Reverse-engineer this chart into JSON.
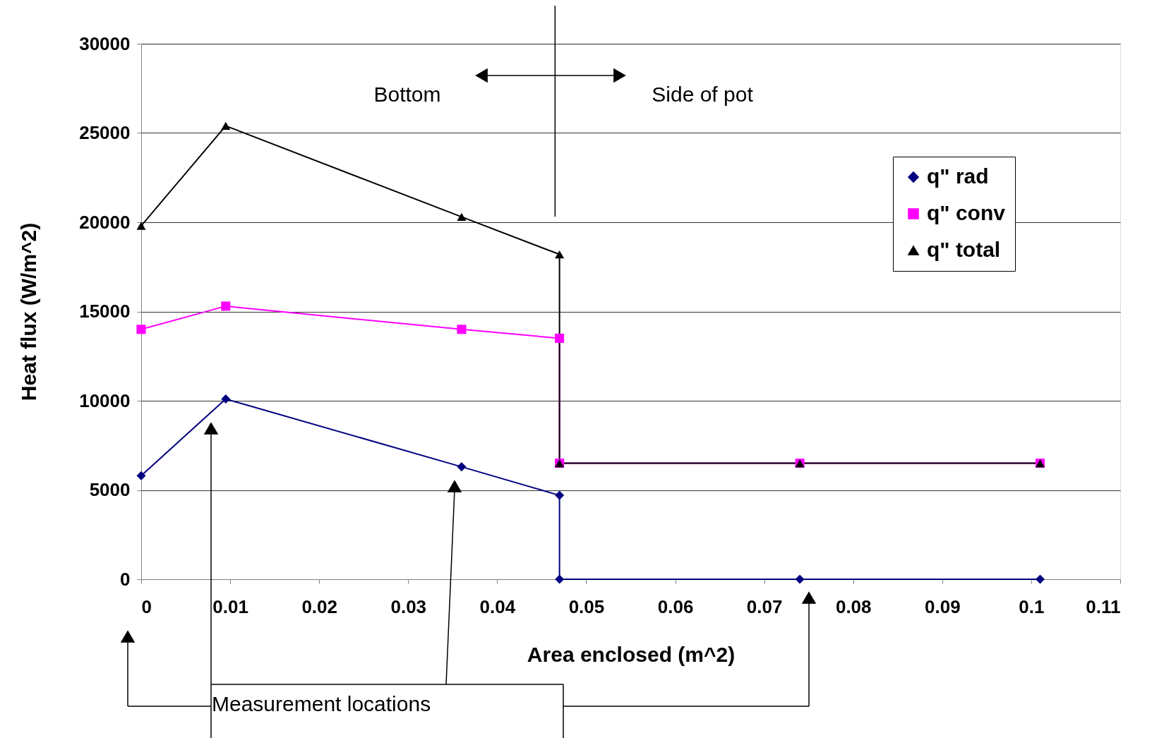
{
  "chart_data": {
    "type": "line",
    "xlabel": "Area enclosed (m^2)",
    "ylabel": "Heat flux (W/m^2)",
    "xlim": [
      0,
      0.11
    ],
    "xticks": [
      0,
      0.01,
      0.02,
      0.03,
      0.04,
      0.05,
      0.06,
      0.07,
      0.08,
      0.09,
      0.1,
      0.11
    ],
    "ylim": [
      0,
      30000
    ],
    "yticks": [
      0,
      5000,
      10000,
      15000,
      20000,
      25000,
      30000
    ],
    "grid": "y",
    "legend": "top right",
    "line_style": "solid",
    "series": [
      {
        "name": "q\" rad",
        "color": "#000080",
        "marker": "diamond",
        "x": [
          0,
          0.0095,
          0.036,
          0.047,
          0.047,
          0.074,
          0.101
        ],
        "values": [
          5800,
          10100,
          6300,
          4700,
          0,
          0,
          0
        ]
      },
      {
        "name": "q\" conv",
        "color": "#ff00ff",
        "marker": "square",
        "x": [
          0,
          0.0095,
          0.036,
          0.047,
          0.047,
          0.074,
          0.101
        ],
        "values": [
          14000,
          15300,
          14000,
          13500,
          6500,
          6500,
          6500
        ]
      },
      {
        "name": "q\" total",
        "color": "#000000",
        "marker": "triangle",
        "x": [
          0,
          0.0095,
          0.036,
          0.047,
          0.047,
          0.074,
          0.101
        ],
        "values": [
          19800,
          25400,
          20300,
          18200,
          6500,
          6500,
          6500
        ]
      }
    ],
    "ref_lines": [
      {
        "axis": "x",
        "value": 0.0465
      }
    ],
    "annotations": [
      "Bottom",
      "Side of pot",
      "Measurement locations"
    ]
  }
}
